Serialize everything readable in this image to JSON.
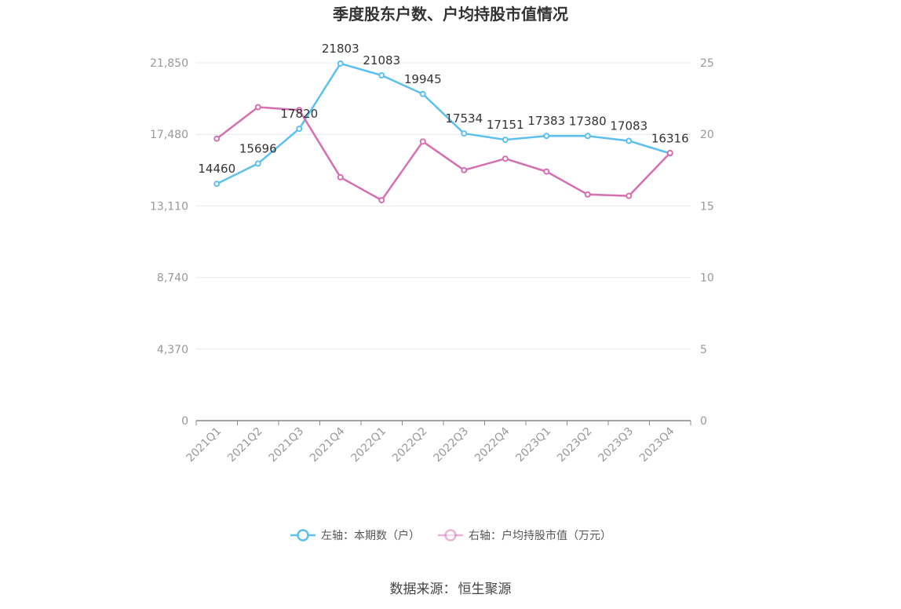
{
  "title": "季度股东户数、户均持股市值情况",
  "source": {
    "label": "数据来源：",
    "name": "恒生聚源"
  },
  "legend": {
    "left_series": "左轴：本期数（户）",
    "right_series": "右轴：户均持股市值（万元）"
  },
  "colors": {
    "left_series": "#5bc0f0",
    "right_series": "#d56fb0",
    "grid": "#e3e8f0",
    "axis_text": "#999999",
    "axis_line": "#888888"
  },
  "chart_data": {
    "type": "line",
    "categories": [
      "2021Q1",
      "2021Q2",
      "2021Q3",
      "2021Q4",
      "2022Q1",
      "2022Q2",
      "2022Q3",
      "2022Q4",
      "2023Q1",
      "2023Q2",
      "2023Q3",
      "2023Q4"
    ],
    "y_left": {
      "ylim": [
        0,
        21850
      ],
      "ticks": [
        0,
        4370,
        8740,
        13110,
        17480,
        21850
      ],
      "tick_labels": [
        "0",
        "4,370",
        "8,740",
        "13,110",
        "17,480",
        "21,850"
      ]
    },
    "y_right": {
      "ylim": [
        0,
        25
      ],
      "ticks": [
        0,
        5,
        10,
        15,
        20,
        25
      ],
      "tick_labels": [
        "0",
        "5",
        "10",
        "15",
        "20",
        "25"
      ]
    },
    "series": [
      {
        "name": "左轴：本期数（户）",
        "axis": "left",
        "values": [
          14460,
          15696,
          17820,
          21803,
          21083,
          19945,
          17534,
          17151,
          17383,
          17380,
          17083,
          16316
        ],
        "data_labels": [
          "14460",
          "15696",
          "17820",
          "21803",
          "21083",
          "19945",
          "17534",
          "17151",
          "17383",
          "17380",
          "17083",
          "16316"
        ]
      },
      {
        "name": "右轴：户均持股市值（万元）",
        "axis": "right",
        "values": [
          19.7,
          21.9,
          21.7,
          17.0,
          15.4,
          19.5,
          17.5,
          18.3,
          17.4,
          15.8,
          15.7,
          18.7
        ]
      }
    ],
    "grid": true,
    "legend_position": "bottom"
  }
}
